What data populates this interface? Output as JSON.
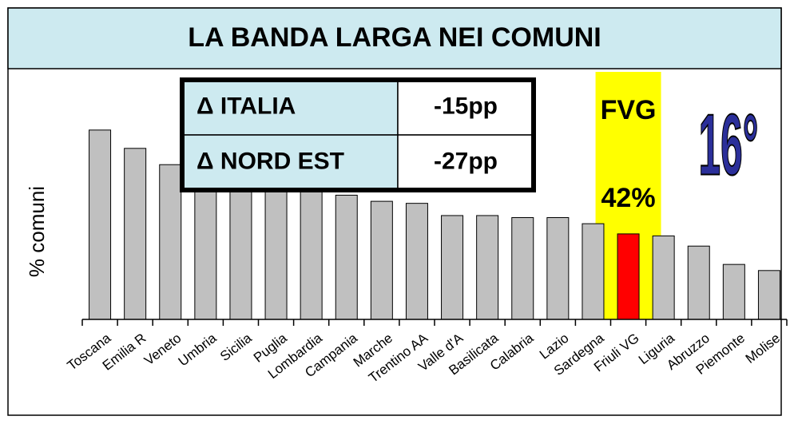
{
  "chart_data": {
    "type": "bar",
    "title": "LA BANDA LARGA NEI COMUNI",
    "ylabel": "% comuni",
    "categories": [
      "Toscana",
      "Emilia R",
      "Veneto",
      "Umbria",
      "Sicilia",
      "Puglia",
      "Lombardia",
      "Campania",
      "Marche",
      "Trentino AA",
      "Valle d'A",
      "Basilicata",
      "Calabria",
      "Lazio",
      "Sardegna",
      "Friuli VG",
      "Liguria",
      "Abruzzo",
      "Piemonte",
      "Molise"
    ],
    "values": [
      93,
      84,
      76,
      68,
      67,
      66,
      65,
      61,
      58,
      57,
      51,
      51,
      50,
      50,
      47,
      42,
      41,
      36,
      27,
      24
    ],
    "value_labels": [
      null,
      null,
      null,
      null,
      null,
      null,
      null,
      null,
      null,
      null,
      null,
      null,
      null,
      null,
      null,
      "42%",
      null,
      null,
      null,
      null
    ],
    "colors": [
      "#c0c0c0",
      "#c0c0c0",
      "#c0c0c0",
      "#c0c0c0",
      "#c0c0c0",
      "#c0c0c0",
      "#c0c0c0",
      "#c0c0c0",
      "#c0c0c0",
      "#c0c0c0",
      "#c0c0c0",
      "#c0c0c0",
      "#c0c0c0",
      "#c0c0c0",
      "#c0c0c0",
      "#ff0000",
      "#c0c0c0",
      "#c0c0c0",
      "#c0c0c0",
      "#c0c0c0"
    ],
    "highlight_label": "FVG",
    "rank": "16°",
    "ylim": [
      0,
      100
    ],
    "table": [
      [
        "Δ ITALIA",
        "-15pp"
      ],
      [
        "Δ NORD EST",
        "-27pp"
      ]
    ]
  }
}
